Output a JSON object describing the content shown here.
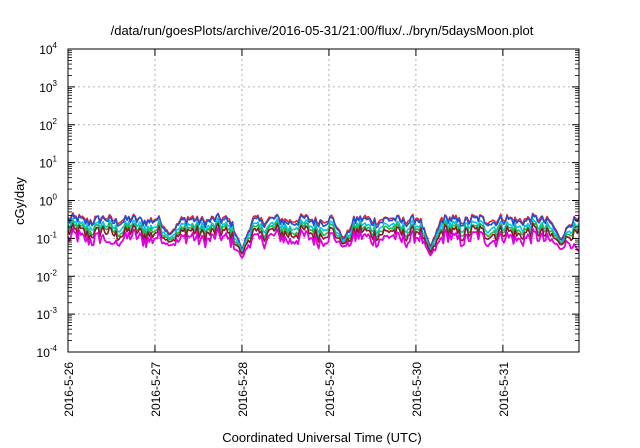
{
  "chart_data": {
    "type": "line",
    "title": "/data/run/goesPlots/archive/2016-05-31/21:00/flux/../bryn/5daysMoon.plot",
    "xlabel": "Coordinated Universal Time (UTC)",
    "ylabel": "cGy/day",
    "y_scale": "log",
    "ylim": [
      0.0001,
      10000
    ],
    "y_ticks": [
      {
        "base": "10",
        "exp": "-4",
        "value": 0.0001
      },
      {
        "base": "10",
        "exp": "-3",
        "value": 0.001
      },
      {
        "base": "10",
        "exp": "-2",
        "value": 0.01
      },
      {
        "base": "10",
        "exp": "-1",
        "value": 0.1
      },
      {
        "base": "10",
        "exp": "0",
        "value": 1
      },
      {
        "base": "10",
        "exp": "1",
        "value": 10
      },
      {
        "base": "10",
        "exp": "2",
        "value": 100
      },
      {
        "base": "10",
        "exp": "3",
        "value": 1000
      },
      {
        "base": "10",
        "exp": "4",
        "value": 10000
      }
    ],
    "x_range": [
      "2016-05-26",
      "2016-05-31 21:00"
    ],
    "x_ticks": [
      "2016-5-26",
      "2016-5-27",
      "2016-5-28",
      "2016-5-29",
      "2016-5-30",
      "2016-5-31"
    ],
    "grid": true,
    "legend": "none",
    "series": [
      {
        "color": "#e8232b",
        "level": 0.32,
        "dips": [
          [
            "2016-05-27 04:00",
            0.13
          ],
          [
            "2016-05-28 00:00",
            0.05
          ],
          [
            "2016-05-29 04:00",
            0.1
          ],
          [
            "2016-05-30 04:00",
            0.06
          ],
          [
            "2016-05-31 16:00",
            0.09
          ]
        ]
      },
      {
        "color": "#1e4fd8",
        "level": 0.29,
        "dips": [
          [
            "2016-05-27 04:00",
            0.12
          ],
          [
            "2016-05-28 00:00",
            0.05
          ],
          [
            "2016-05-29 04:00",
            0.09
          ],
          [
            "2016-05-30 04:00",
            0.055
          ],
          [
            "2016-05-31 16:00",
            0.085
          ]
        ]
      },
      {
        "color": "#00c8d8",
        "level": 0.21,
        "dips": [
          [
            "2016-05-27 04:00",
            0.1
          ],
          [
            "2016-05-28 00:00",
            0.045
          ],
          [
            "2016-05-29 04:00",
            0.08
          ],
          [
            "2016-05-30 04:00",
            0.05
          ],
          [
            "2016-05-31 16:00",
            0.075
          ]
        ]
      },
      {
        "color": "#22b84a",
        "level": 0.17,
        "dips": [
          [
            "2016-05-27 04:00",
            0.09
          ],
          [
            "2016-05-28 00:00",
            0.04
          ],
          [
            "2016-05-29 04:00",
            0.075
          ],
          [
            "2016-05-30 04:00",
            0.045
          ],
          [
            "2016-05-31 16:00",
            0.07
          ]
        ]
      },
      {
        "color": "#8a1a2a",
        "level": 0.14,
        "dips": [
          [
            "2016-05-27 04:00",
            0.08
          ],
          [
            "2016-05-28 00:00",
            0.038
          ],
          [
            "2016-05-29 04:00",
            0.07
          ],
          [
            "2016-05-30 04:00",
            0.042
          ],
          [
            "2016-05-31 16:00",
            0.065
          ]
        ]
      },
      {
        "color": "#e000e0",
        "level": 0.1,
        "dips": [
          [
            "2016-05-26 12:00",
            0.07
          ],
          [
            "2016-05-27 04:00",
            0.065
          ],
          [
            "2016-05-28 00:00",
            0.03
          ],
          [
            "2016-05-29 04:00",
            0.06
          ],
          [
            "2016-05-30 04:00",
            0.035
          ],
          [
            "2016-05-31 16:00",
            0.05
          ],
          [
            "2016-05-31 21:00",
            0.045
          ]
        ]
      }
    ]
  }
}
